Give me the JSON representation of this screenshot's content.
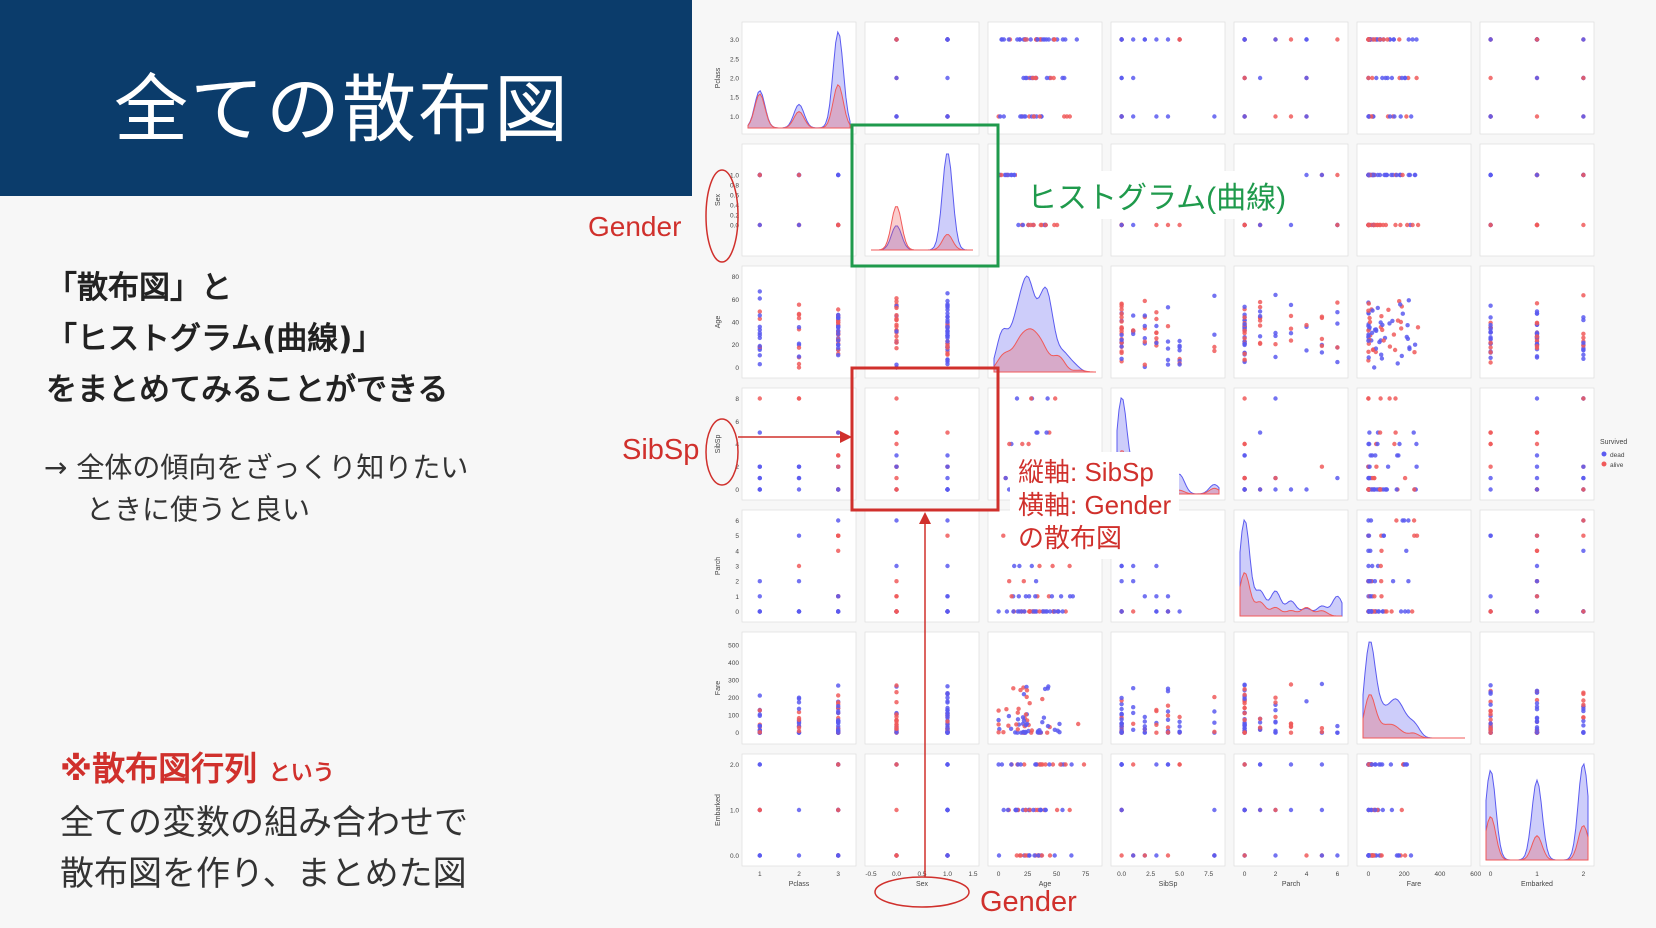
{
  "title": "全ての散布図",
  "left_text": {
    "heading_lines": [
      "「散布図」と",
      "「ヒストグラム(曲線)」",
      "をまとめてみることができる"
    ],
    "note_lines": [
      "→ 全体の傾向をざっくり知りたい",
      "ときに使うと良い"
    ],
    "term_main": "※散布図行列",
    "term_suffix": "という",
    "body_lines": [
      "全ての変数の組み合わせで",
      "散布図を作り、まとめた図"
    ]
  },
  "annotations": {
    "gender_row": "Gender",
    "sibsp_row": "SibSp",
    "gender_col": "Gender",
    "hist_label": "ヒストグラム(曲線)",
    "scatter_label_lines": [
      "縦軸: SibSp",
      "横軸: Gender",
      "の散布図"
    ]
  },
  "colors": {
    "title_bg": "#0b3c6b",
    "annotation_red": "#d0302c",
    "annotation_green": "#1f9a4c",
    "dead": "#5b5bf0",
    "alive": "#f05a5a"
  },
  "chart_data": {
    "type": "scatter",
    "subtype": "pairplot",
    "variables": [
      "Pclass",
      "Sex",
      "Age",
      "SibSp",
      "Parch",
      "Fare",
      "Embarked"
    ],
    "hue_title": "Survived",
    "hue_levels": [
      "dead",
      "alive"
    ],
    "diagonal": "kde",
    "legend_position": "right",
    "ranges": {
      "Pclass": [
        0.7,
        3.3
      ],
      "Sex": [
        -0.5,
        1.5
      ],
      "Age": [
        -4,
        84
      ],
      "SibSp": [
        -0.4,
        8.4
      ],
      "Parch": [
        -0.3,
        6.3
      ],
      "Fare": [
        -30,
        540
      ],
      "Embarked": [
        -0.1,
        2.1
      ]
    },
    "ticks": {
      "Pclass": [
        1.0,
        1.5,
        2.0,
        2.5,
        3.0
      ],
      "Sex": [
        0.0,
        0.2,
        0.4,
        0.6,
        0.8,
        1.0
      ],
      "Age": [
        0,
        20,
        40,
        60,
        80
      ],
      "SibSp": [
        0,
        2,
        4,
        6,
        8
      ],
      "Parch": [
        0,
        1,
        2,
        3,
        4,
        5,
        6
      ],
      "Fare": [
        0,
        100,
        200,
        300,
        400,
        500
      ],
      "Embarked": [
        0.0,
        1.0,
        2.0
      ]
    },
    "x_ticks": {
      "Pclass": [
        1,
        2,
        3
      ],
      "Sex": [
        -0.5,
        0.0,
        0.5,
        1.0,
        1.5
      ],
      "Age": [
        0,
        25,
        50,
        75
      ],
      "SibSp": [
        0.0,
        2.5,
        5.0,
        7.5
      ],
      "Parch": [
        0,
        2,
        4,
        6
      ],
      "Fare": [
        0,
        200,
        400,
        600
      ],
      "Embarked": [
        0,
        1,
        2
      ]
    },
    "x_tick_labels": {
      "Pclass": [
        "1",
        "2",
        "3"
      ],
      "Sex": [
        "-0.5",
        "0.0",
        "0.5",
        "1.0",
        "1.5"
      ],
      "Age": [
        "0",
        "25",
        "50",
        "75"
      ],
      "SibSp": [
        "0.0",
        "2.5",
        "5.0",
        "7.5"
      ],
      "Parch": [
        "0",
        "2",
        "4",
        "6"
      ],
      "Fare": [
        "0",
        "200",
        "400",
        "600"
      ],
      "Embarked": [
        "0",
        "1",
        "2"
      ]
    },
    "y_tick_labels": {
      "Pclass": [
        "1.0",
        "1.5",
        "2.0",
        "2.5",
        "3.0"
      ],
      "Sex": [
        "0.0",
        "0.2",
        "0.4",
        "0.6",
        "0.8",
        "1.0"
      ],
      "Age": [
        "0",
        "20",
        "40",
        "60",
        "80"
      ],
      "SibSp": [
        "0",
        "2",
        "4",
        "6",
        "8"
      ],
      "Parch": [
        "0",
        "1",
        "2",
        "3",
        "4",
        "5",
        "6"
      ],
      "Fare": [
        "0",
        "100",
        "200",
        "300",
        "400",
        "500"
      ],
      "Embarked": [
        "0.0",
        "1.0",
        "2.0"
      ]
    },
    "discrete_levels": {
      "Pclass": [
        1,
        2,
        3
      ],
      "Sex": [
        0,
        1
      ],
      "SibSp": [
        0,
        1,
        2,
        3,
        4,
        5,
        8
      ],
      "Parch": [
        0,
        1,
        2,
        3,
        4,
        5,
        6
      ],
      "Embarked": [
        0,
        1,
        2
      ]
    },
    "age_range": [
      0,
      80
    ],
    "fare_range": [
      0,
      512
    ],
    "dominant_class": {
      "Pclass": 3,
      "Sex": 1
    },
    "highlighted_cells": [
      {
        "row": "Sex",
        "col": "Sex",
        "color": "#1f9a4c"
      },
      {
        "row": "SibSp",
        "col": "Sex",
        "color": "#d0302c"
      }
    ]
  }
}
